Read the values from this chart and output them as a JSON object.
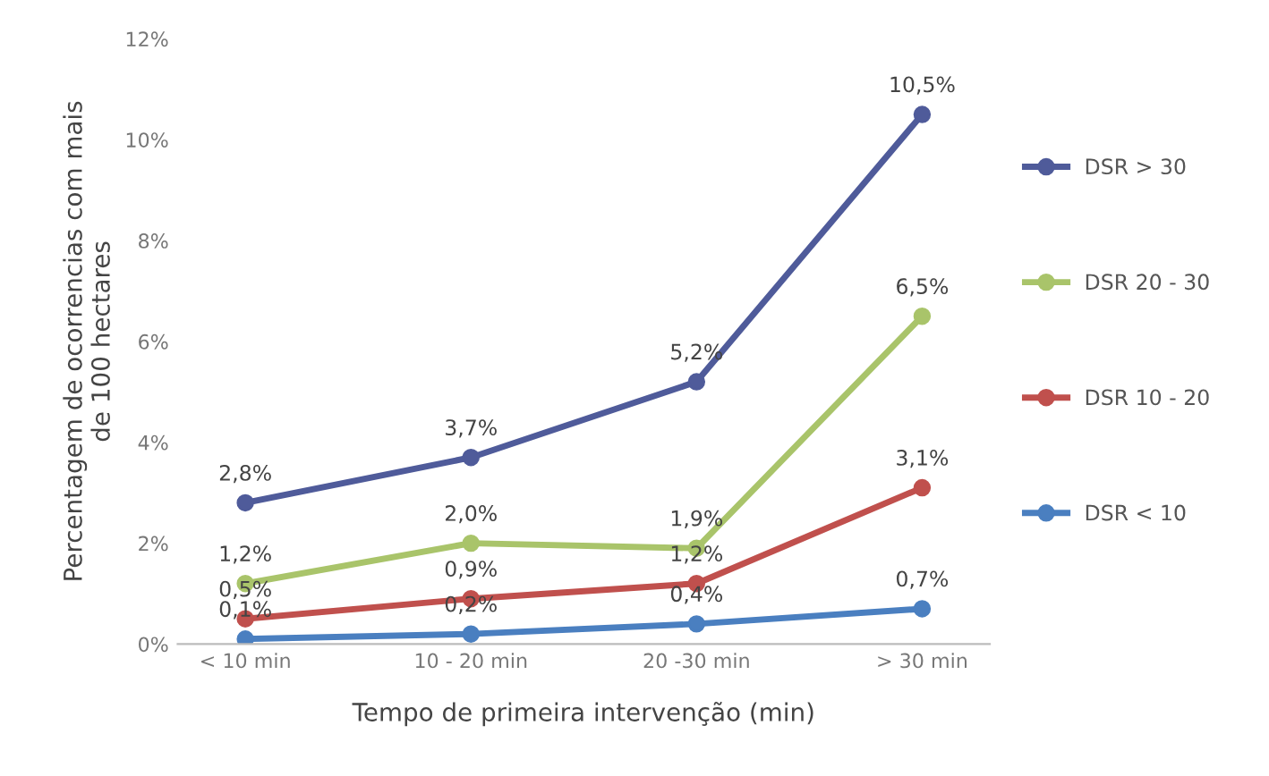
{
  "chart_data": {
    "type": "line",
    "xlabel": "Tempo de primeira intervenção (min)",
    "ylabel": "Percentagem de ocorrencias com mais\nde 100 hectares",
    "categories": [
      "< 10 min",
      "10 - 20 min",
      "20 -30 min",
      "> 30 min"
    ],
    "series": [
      {
        "name": "DSR > 30",
        "color": "#4f5b9a",
        "values": [
          2.8,
          3.7,
          5.2,
          10.5
        ],
        "value_labels": [
          "2,8%",
          "3,7%",
          "5,2%",
          "10,5%"
        ]
      },
      {
        "name": "DSR 20 - 30",
        "color": "#a9c46a",
        "values": [
          1.2,
          2.0,
          1.9,
          6.5
        ],
        "value_labels": [
          "1,2%",
          "2,0%",
          "1,9%",
          "6,5%"
        ]
      },
      {
        "name": "DSR 10 - 20",
        "color": "#c0504d",
        "values": [
          0.5,
          0.9,
          1.2,
          3.1
        ],
        "value_labels": [
          "0,5%",
          "0,9%",
          "1,2%",
          "3,1%"
        ]
      },
      {
        "name": "DSR < 10",
        "color": "#4a7fc0",
        "values": [
          0.1,
          0.2,
          0.4,
          0.7
        ],
        "value_labels": [
          "0,1%",
          "0,2%",
          "0,4%",
          "0,7%"
        ]
      }
    ],
    "ylim": [
      0,
      12
    ],
    "yticks": [
      {
        "value": 0,
        "label": "0%"
      },
      {
        "value": 2,
        "label": "2%"
      },
      {
        "value": 4,
        "label": "4%"
      },
      {
        "value": 6,
        "label": "6%"
      },
      {
        "value": 8,
        "label": "8%"
      },
      {
        "value": 10,
        "label": "10%"
      },
      {
        "value": 12,
        "label": "12%"
      }
    ],
    "grid": false,
    "legend": "right",
    "marker": "circle",
    "line_style": "solid"
  }
}
